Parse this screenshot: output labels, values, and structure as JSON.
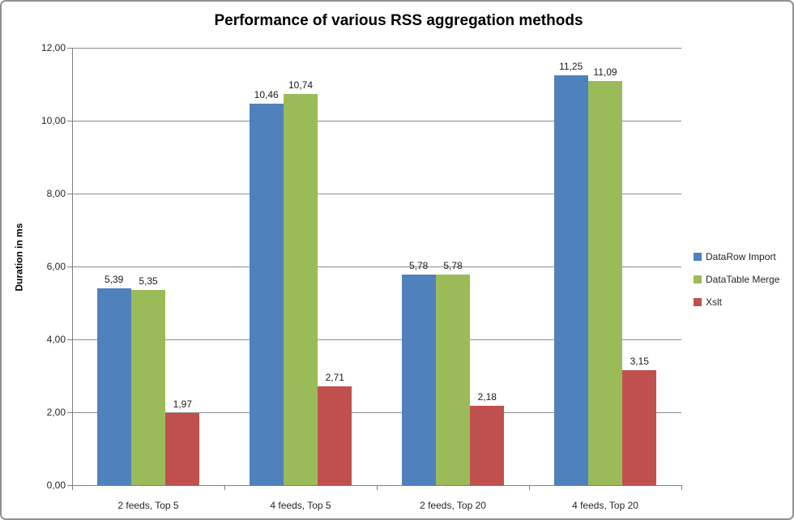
{
  "chart_data": {
    "type": "bar",
    "title": "Performance of various RSS aggregation methods",
    "ylabel": "Duration in ms",
    "xlabel": "",
    "categories": [
      "2 feeds, Top 5",
      "4 feeds, Top 5",
      "2 feeds, Top 20",
      "4 feeds, Top 20"
    ],
    "series": [
      {
        "name": "DataRow Import",
        "color": "#4F81BD",
        "values": [
          5.39,
          10.46,
          5.78,
          11.25
        ],
        "labels": [
          "5,39",
          "10,46",
          "5,78",
          "11,25"
        ]
      },
      {
        "name": "DataTable Merge",
        "color": "#9BBB59",
        "values": [
          5.35,
          10.74,
          5.78,
          11.09
        ],
        "labels": [
          "5,35",
          "10,74",
          "5,78",
          "11,09"
        ]
      },
      {
        "name": "Xslt",
        "color": "#C0504D",
        "values": [
          1.97,
          2.71,
          2.18,
          3.15
        ],
        "labels": [
          "1,97",
          "2,71",
          "2,18",
          "3,15"
        ]
      }
    ],
    "ylim": [
      0,
      12
    ],
    "y_ticks": [
      {
        "value": 0,
        "label": "0,00"
      },
      {
        "value": 2,
        "label": "2,00"
      },
      {
        "value": 4,
        "label": "4,00"
      },
      {
        "value": 6,
        "label": "6,00"
      },
      {
        "value": 8,
        "label": "8,00"
      },
      {
        "value": 10,
        "label": "10,00"
      },
      {
        "value": 12,
        "label": "12,00"
      }
    ],
    "grid": true,
    "legend_position": "right",
    "decimal_separator": ","
  },
  "colors": {
    "axis": "#7F7F7F",
    "gridline": "#8C8C8C",
    "frame_border": "#919191",
    "title_text": "#000000",
    "label_text": "#262626",
    "background": "#FFFFFF"
  }
}
